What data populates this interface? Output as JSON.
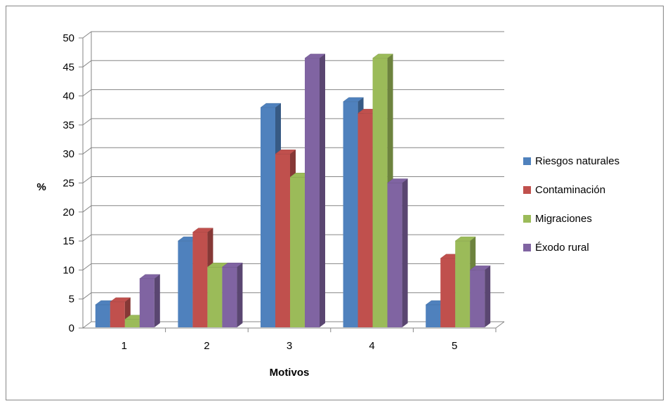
{
  "chart_data": {
    "type": "bar",
    "style": "3d-clustered-column",
    "categories": [
      "1",
      "2",
      "3",
      "4",
      "5"
    ],
    "series": [
      {
        "name": "Riesgos naturales",
        "color": "#4F81BD",
        "values": [
          4,
          15,
          38,
          39,
          4
        ]
      },
      {
        "name": "Contaminación",
        "color": "#C0504D",
        "values": [
          4.5,
          16.5,
          30,
          37,
          12
        ]
      },
      {
        "name": "Migraciones",
        "color": "#9BBB59",
        "values": [
          1.5,
          10.5,
          26,
          46.5,
          15
        ]
      },
      {
        "name": "Éxodo rural",
        "color": "#8064A2",
        "values": [
          8.5,
          10.5,
          46.5,
          25,
          10
        ]
      }
    ],
    "xlabel": "Motivos",
    "ylabel": "%",
    "ylim": [
      0,
      50
    ],
    "yticks": [
      0,
      5,
      10,
      15,
      20,
      25,
      30,
      35,
      40,
      45,
      50
    ],
    "grid": true,
    "legend_position": "right"
  }
}
